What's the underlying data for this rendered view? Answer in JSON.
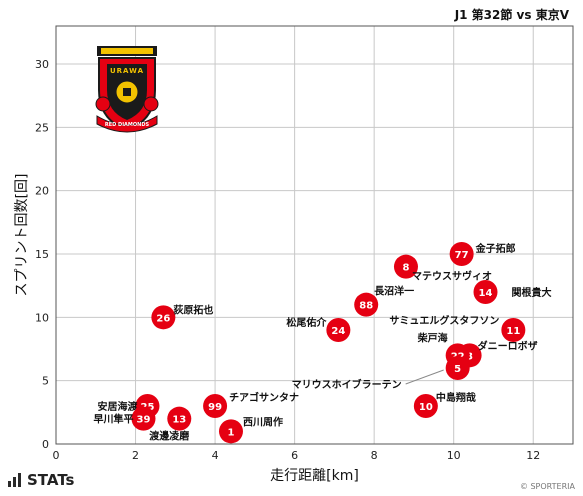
{
  "match_title": "J1 第32節 vs 東京V",
  "footer": {
    "brand": "STATs",
    "copyright": "© SPORTERIA"
  },
  "emblem": {
    "name": "urawa-reds-emblem",
    "text_ring": "RED DIAMONDS",
    "letters": "URAWA"
  },
  "colors": {
    "marker": "#e50012",
    "grid": "#c8c8c8",
    "emblem_red": "#e50012",
    "emblem_dark": "#1a1a1a",
    "emblem_gold": "#f2c200"
  },
  "chart_data": {
    "type": "scatter",
    "title": "",
    "xlabel": "走行距離[km]",
    "ylabel": "スプリント回数[回]",
    "xlim": [
      0,
      13
    ],
    "ylim": [
      0,
      33
    ],
    "xticks": [
      0,
      2,
      4,
      6,
      8,
      10,
      12
    ],
    "yticks": [
      0,
      5,
      10,
      15,
      20,
      25,
      30
    ],
    "grid": true,
    "points": [
      {
        "number": "77",
        "name": "金子拓郎",
        "x": 10.2,
        "y": 15
      },
      {
        "number": "8",
        "name": "マテウスサヴィオ",
        "x": 8.8,
        "y": 14
      },
      {
        "number": "14",
        "name": "関根貴大",
        "x": 10.8,
        "y": 12
      },
      {
        "number": "88",
        "name": "長沼洋一",
        "x": 7.8,
        "y": 11
      },
      {
        "number": "26",
        "name": "荻原拓也",
        "x": 2.7,
        "y": 10
      },
      {
        "number": "24",
        "name": "松尾佑介",
        "x": 7.1,
        "y": 9
      },
      {
        "number": "11",
        "name": "サミュエルグスタフソン",
        "x": 11.5,
        "y": 9
      },
      {
        "number": "3",
        "name": "ダニーロボザ",
        "x": 10.4,
        "y": 7
      },
      {
        "number": "22",
        "name": "柴戸海",
        "x": 10.1,
        "y": 7
      },
      {
        "number": "5",
        "name": "マリウスホイブラーテン",
        "x": 10.1,
        "y": 6
      },
      {
        "number": "10",
        "name": "中島翔哉",
        "x": 9.3,
        "y": 3
      },
      {
        "number": "99",
        "name": "チアゴサンタナ",
        "x": 4.0,
        "y": 3
      },
      {
        "number": "25",
        "name": "安居海渡",
        "x": 2.3,
        "y": 3
      },
      {
        "number": "39",
        "name": "早川隼平",
        "x": 2.2,
        "y": 2
      },
      {
        "number": "13",
        "name": "渡邊凌磨",
        "x": 3.1,
        "y": 2
      },
      {
        "number": "1",
        "name": "西川周作",
        "x": 4.4,
        "y": 1
      }
    ]
  }
}
